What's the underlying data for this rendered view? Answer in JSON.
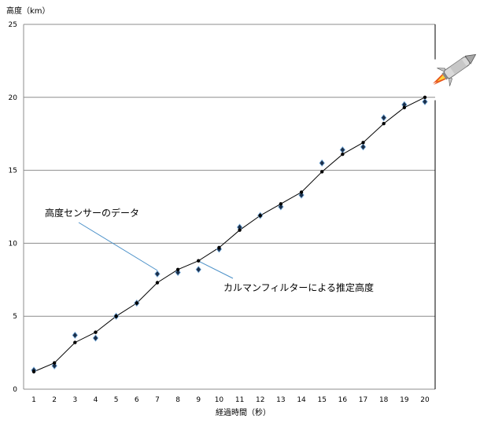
{
  "chart_data": {
    "type": "line",
    "ylabel": "高度（km）",
    "xlabel": "経過時間（秒）",
    "x": [
      1,
      2,
      3,
      4,
      5,
      6,
      7,
      8,
      9,
      10,
      11,
      12,
      13,
      14,
      15,
      16,
      17,
      18,
      19,
      20
    ],
    "xlim": [
      1,
      20
    ],
    "ylim": [
      0,
      25
    ],
    "yticks": [
      0,
      5,
      10,
      15,
      20,
      25
    ],
    "grid": "horizontal",
    "series": [
      {
        "name": "高度センサーのデータ",
        "marker": "diamond",
        "values": [
          1.3,
          1.6,
          3.7,
          3.5,
          5.0,
          5.9,
          7.9,
          8.0,
          8.2,
          9.6,
          11.1,
          11.9,
          12.5,
          13.3,
          15.5,
          16.4,
          16.6,
          18.6,
          19.5,
          19.7
        ]
      },
      {
        "name": "カルマンフィルターによる推定高度",
        "marker": "dot",
        "values": [
          1.2,
          1.8,
          3.2,
          3.9,
          5.0,
          5.9,
          7.3,
          8.2,
          8.8,
          9.7,
          10.9,
          11.9,
          12.7,
          13.5,
          14.9,
          16.1,
          16.9,
          18.2,
          19.3,
          20.0
        ]
      }
    ],
    "annotations": [
      {
        "text": "高度センサーのデータ",
        "points_to_x": 7
      },
      {
        "text": "カルマンフィルターによる推定高度",
        "points_to_x": 9
      }
    ],
    "decoration": "rocket-icon"
  }
}
